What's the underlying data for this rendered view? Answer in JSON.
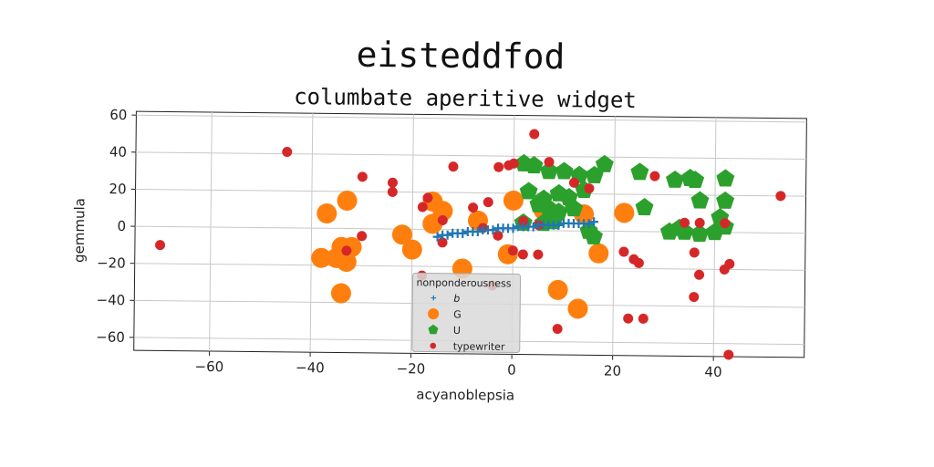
{
  "chart_data": {
    "type": "scatter",
    "title": "eisteddfod",
    "subtitle": "columbate aperitive widget",
    "xlabel": "acyanoblepsia",
    "ylabel": "gemmula",
    "xlim": [
      -75,
      58
    ],
    "ylim": [
      -67,
      62
    ],
    "xticks": [
      -60,
      -40,
      -20,
      0,
      20,
      40
    ],
    "yticks": [
      -60,
      -40,
      -20,
      0,
      20,
      40,
      60
    ],
    "grid": true,
    "legend": {
      "title": "nonponderousness",
      "position": "lower-center"
    },
    "series": [
      {
        "name": "b",
        "marker": "plus",
        "color": "#1f77b4",
        "points": [
          [
            -15,
            -4
          ],
          [
            -14,
            -3
          ],
          [
            -13,
            -3
          ],
          [
            -12,
            -2
          ],
          [
            -11,
            -2
          ],
          [
            -10,
            -2
          ],
          [
            -9,
            -1
          ],
          [
            -8,
            -1
          ],
          [
            -7,
            -1
          ],
          [
            -6,
            0
          ],
          [
            -5,
            0
          ],
          [
            -4,
            0
          ],
          [
            -3,
            1
          ],
          [
            -2,
            1
          ],
          [
            -1,
            1
          ],
          [
            0,
            1
          ],
          [
            1,
            2
          ],
          [
            2,
            2
          ],
          [
            3,
            2
          ],
          [
            4,
            2
          ],
          [
            5,
            3
          ],
          [
            6,
            3
          ],
          [
            7,
            3
          ],
          [
            8,
            3
          ],
          [
            9,
            3
          ],
          [
            10,
            4
          ],
          [
            11,
            4
          ],
          [
            12,
            4
          ],
          [
            13,
            4
          ],
          [
            14,
            4
          ],
          [
            15,
            4
          ],
          [
            16,
            5
          ]
        ]
      },
      {
        "name": "G",
        "marker": "circle",
        "color": "#ff7f0e",
        "points": [
          [
            -35,
            -16
          ],
          [
            -38,
            -16
          ],
          [
            -33,
            -18
          ],
          [
            -32,
            -10
          ],
          [
            -34,
            -10
          ],
          [
            -34,
            -35
          ],
          [
            -37,
            8
          ],
          [
            -33,
            15
          ],
          [
            -22,
            -3
          ],
          [
            -20,
            -11
          ],
          [
            -16,
            15
          ],
          [
            -16,
            3
          ],
          [
            -14,
            10
          ],
          [
            -10,
            -21
          ],
          [
            -7,
            5
          ],
          [
            -1,
            -13
          ],
          [
            0,
            16
          ],
          [
            6,
            11
          ],
          [
            8,
            8
          ],
          [
            9,
            -32
          ],
          [
            13,
            -42
          ],
          [
            14,
            9
          ],
          [
            17,
            -12
          ],
          [
            22,
            10
          ]
        ]
      },
      {
        "name": "U",
        "marker": "pentagon",
        "color": "#2ca02c",
        "points": [
          [
            2,
            36
          ],
          [
            4,
            35
          ],
          [
            7,
            32
          ],
          [
            10,
            32
          ],
          [
            13,
            30
          ],
          [
            16,
            30
          ],
          [
            18,
            36
          ],
          [
            3,
            21
          ],
          [
            6,
            17
          ],
          [
            9,
            20
          ],
          [
            11,
            18
          ],
          [
            14,
            22
          ],
          [
            5,
            14
          ],
          [
            7,
            12
          ],
          [
            9,
            10
          ],
          [
            12,
            12
          ],
          [
            2,
            4
          ],
          [
            6,
            4
          ],
          [
            8,
            5
          ],
          [
            15,
            0
          ],
          [
            16,
            -3
          ],
          [
            25,
            32
          ],
          [
            26,
            13
          ],
          [
            32,
            28
          ],
          [
            35,
            29
          ],
          [
            36,
            28
          ],
          [
            42,
            29
          ],
          [
            37,
            17
          ],
          [
            42,
            17
          ],
          [
            41,
            8
          ],
          [
            42,
            3
          ],
          [
            31,
            0
          ],
          [
            34,
            0
          ],
          [
            37,
            -1
          ],
          [
            40,
            0
          ],
          [
            33,
            2
          ]
        ]
      },
      {
        "name": "typewriter",
        "marker": "dot",
        "color": "#d62728",
        "points": [
          [
            -70,
            -10
          ],
          [
            -45,
            41
          ],
          [
            -30,
            28
          ],
          [
            -24,
            25
          ],
          [
            -24,
            20
          ],
          [
            -18,
            12
          ],
          [
            -17,
            17
          ],
          [
            -12,
            34
          ],
          [
            -14,
            5
          ],
          [
            -8,
            12
          ],
          [
            -5,
            15
          ],
          [
            -3,
            34
          ],
          [
            0,
            36
          ],
          [
            -1,
            35
          ],
          [
            4,
            52
          ],
          [
            7,
            37
          ],
          [
            2,
            5
          ],
          [
            5,
            3
          ],
          [
            -3,
            -3
          ],
          [
            -6,
            1
          ],
          [
            0,
            -11
          ],
          [
            2,
            -13
          ],
          [
            5,
            -13
          ],
          [
            -30,
            -4
          ],
          [
            -33,
            -12
          ],
          [
            -14,
            -7
          ],
          [
            -4,
            -30
          ],
          [
            -18,
            -25
          ],
          [
            9,
            -53
          ],
          [
            12,
            26
          ],
          [
            15,
            23
          ],
          [
            22,
            -11
          ],
          [
            24,
            -15
          ],
          [
            25,
            -17
          ],
          [
            23,
            -47
          ],
          [
            26,
            -47
          ],
          [
            28,
            30
          ],
          [
            34,
            5
          ],
          [
            36,
            -11
          ],
          [
            37,
            5
          ],
          [
            37,
            -23
          ],
          [
            36,
            -35
          ],
          [
            42,
            -20
          ],
          [
            43,
            -17
          ],
          [
            43,
            -66
          ],
          [
            53,
            20
          ],
          [
            42,
            5
          ]
        ]
      }
    ]
  }
}
